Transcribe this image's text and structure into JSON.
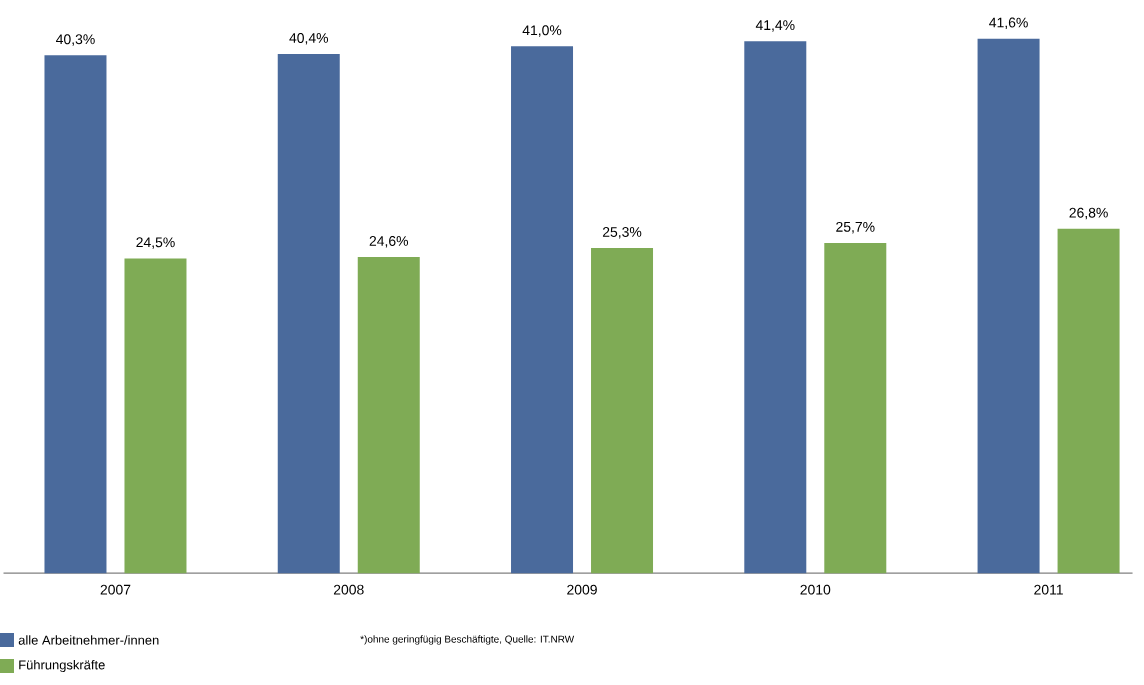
{
  "chart_data": {
    "type": "bar",
    "categories": [
      "2007",
      "2008",
      "2009",
      "2010",
      "2011"
    ],
    "series": [
      {
        "name": "alle Arbeitnehmer-/innen",
        "color": "#4a6a9c",
        "values": [
          40.3,
          40.4,
          41.0,
          41.4,
          41.6
        ],
        "value_labels": [
          "40,3%",
          "40,4%",
          "41,0%",
          "41,4%",
          "41,6%"
        ]
      },
      {
        "name": "Führungskräfte",
        "color": "#7fab55",
        "values": [
          24.5,
          24.6,
          25.3,
          25.7,
          26.8
        ],
        "value_labels": [
          "24,5%",
          "24,6%",
          "25,3%",
          "25,7%",
          "26,8%"
        ]
      }
    ],
    "annotations": [
      "*)ohne geringfügig Beschäftigte, Quelle: IT.NRW"
    ],
    "legend": "bottom left"
  }
}
